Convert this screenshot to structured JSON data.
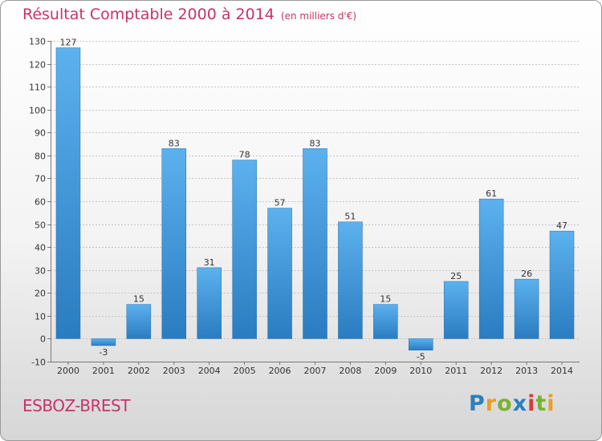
{
  "title": "Résultat Comptable 2000 à 2014",
  "subtitle": "(en milliers d'€)",
  "commune": "ESBOZ-BREST",
  "logo": {
    "p": "P",
    "r": "r",
    "o": "o",
    "x": "x",
    "i1": "i",
    "t": "t",
    "i2": "i"
  },
  "colors": {
    "bar": "#3d9ae0",
    "text_accent": "#c8326a"
  },
  "chart_data": {
    "type": "bar",
    "title": "Résultat Comptable 2000 à 2014",
    "xlabel": "",
    "ylabel": "",
    "ylim": [
      -10,
      130
    ],
    "yticks": [
      -10,
      0,
      10,
      20,
      30,
      40,
      50,
      60,
      70,
      80,
      90,
      100,
      110,
      120,
      130
    ],
    "grid": "horizontal",
    "categories": [
      "2000",
      "2001",
      "2002",
      "2003",
      "2004",
      "2005",
      "2006",
      "2007",
      "2008",
      "2009",
      "2010",
      "2011",
      "2012",
      "2013",
      "2014"
    ],
    "values": [
      127,
      -3,
      15,
      83,
      31,
      78,
      57,
      83,
      51,
      15,
      -5,
      25,
      61,
      26,
      47
    ]
  }
}
